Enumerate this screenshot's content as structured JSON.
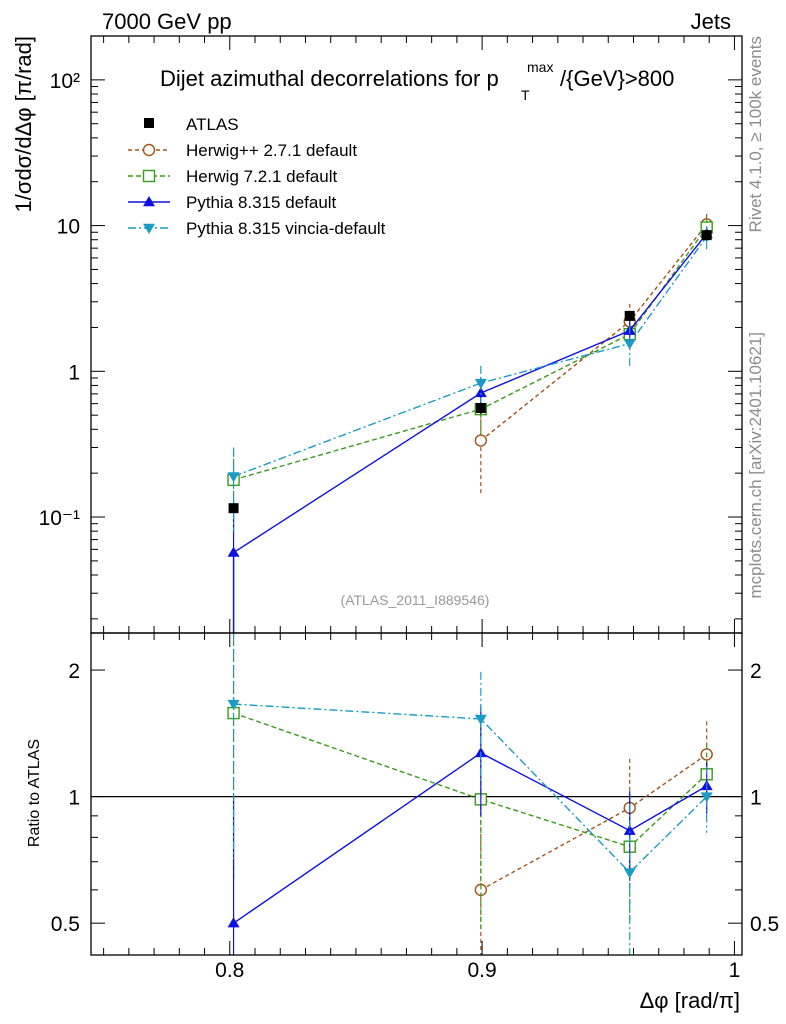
{
  "header": {
    "left": "7000 GeV pp",
    "right": "Jets"
  },
  "side_labels": {
    "rivet": "Rivet 4.1.0, ≥ 100k events",
    "mcplots": "mcplots.cern.ch [arXiv:2401.10621]"
  },
  "chart_data": {
    "type": "line",
    "title_prefix": "Dijet azimuthal decorrelations for p",
    "title_sup": "max",
    "title_sub": "T",
    "title_suffix": "/{GeV}>800",
    "ylabel": "1/σdσ/dΔφ [π/rad]",
    "ratio_ylabel": "Ratio to ATLAS",
    "xlabel": "Δφ [rad/π]",
    "watermark": "(ATLAS_2011_I889546)",
    "x": [
      0.8015,
      0.8995,
      0.9585,
      0.989
    ],
    "xlim": [
      0.745,
      1.003
    ],
    "ylim": [
      0.016,
      200
    ],
    "ratio_ylim": [
      0.42,
      2.45
    ],
    "x_ticks": [
      "0.8",
      "0.9",
      "1"
    ],
    "y_ticks": [
      "10⁻¹",
      "1",
      "10",
      "10²"
    ],
    "ratio_ticks": [
      "0.5",
      "1",
      "2"
    ],
    "data": {
      "name": "ATLAS",
      "values": [
        0.115,
        0.56,
        2.4,
        8.6
      ],
      "errors": [
        0.0,
        0.05,
        0.2,
        0.5
      ],
      "color": "#000000"
    },
    "series": [
      {
        "name": "Herwig++ 2.7.1 default",
        "color": "#a0541a",
        "marker": "circle",
        "dash": "4,3",
        "values": [
          0.0,
          0.335,
          2.2,
          10.2
        ],
        "errors": [
          0.0,
          0.19,
          0.7,
          1.8
        ],
        "ratio": [
          null,
          0.6,
          0.94,
          1.26
        ],
        "ratio_errors": [
          0.0,
          0.35,
          0.29,
          0.25
        ]
      },
      {
        "name": "Herwig 7.2.1 default",
        "color": "#3a9a19",
        "marker": "square",
        "dash": "5,3",
        "values": [
          0.18,
          0.55,
          1.8,
          9.7
        ],
        "errors": [
          0.1,
          0.2,
          0.4,
          1.4
        ],
        "ratio": [
          1.58,
          0.985,
          0.76,
          1.13
        ],
        "ratio_errors": [
          0.95,
          0.5,
          0.25,
          0.2
        ]
      },
      {
        "name": "Pythia 8.315 default",
        "color": "#1010e0",
        "marker": "triangle-up",
        "dash": "",
        "values": [
          0.057,
          0.71,
          1.9,
          8.8
        ],
        "errors": [
          0.05,
          0.2,
          0.3,
          1.0
        ],
        "ratio": [
          0.5,
          1.27,
          0.83,
          1.06
        ],
        "ratio_errors": [
          0.5,
          0.37,
          0.2,
          0.15
        ]
      },
      {
        "name": "Pythia 8.315 vincia-default",
        "color": "#1b9bc3",
        "marker": "triangle-down",
        "dash": "8,3,2,3",
        "values": [
          0.19,
          0.83,
          1.55,
          8.4
        ],
        "errors": [
          0.11,
          0.26,
          0.5,
          1.5
        ],
        "ratio": [
          1.66,
          1.53,
          0.66,
          1.0
        ],
        "ratio_errors": [
          0.95,
          0.45,
          0.3,
          0.18
        ]
      }
    ]
  }
}
